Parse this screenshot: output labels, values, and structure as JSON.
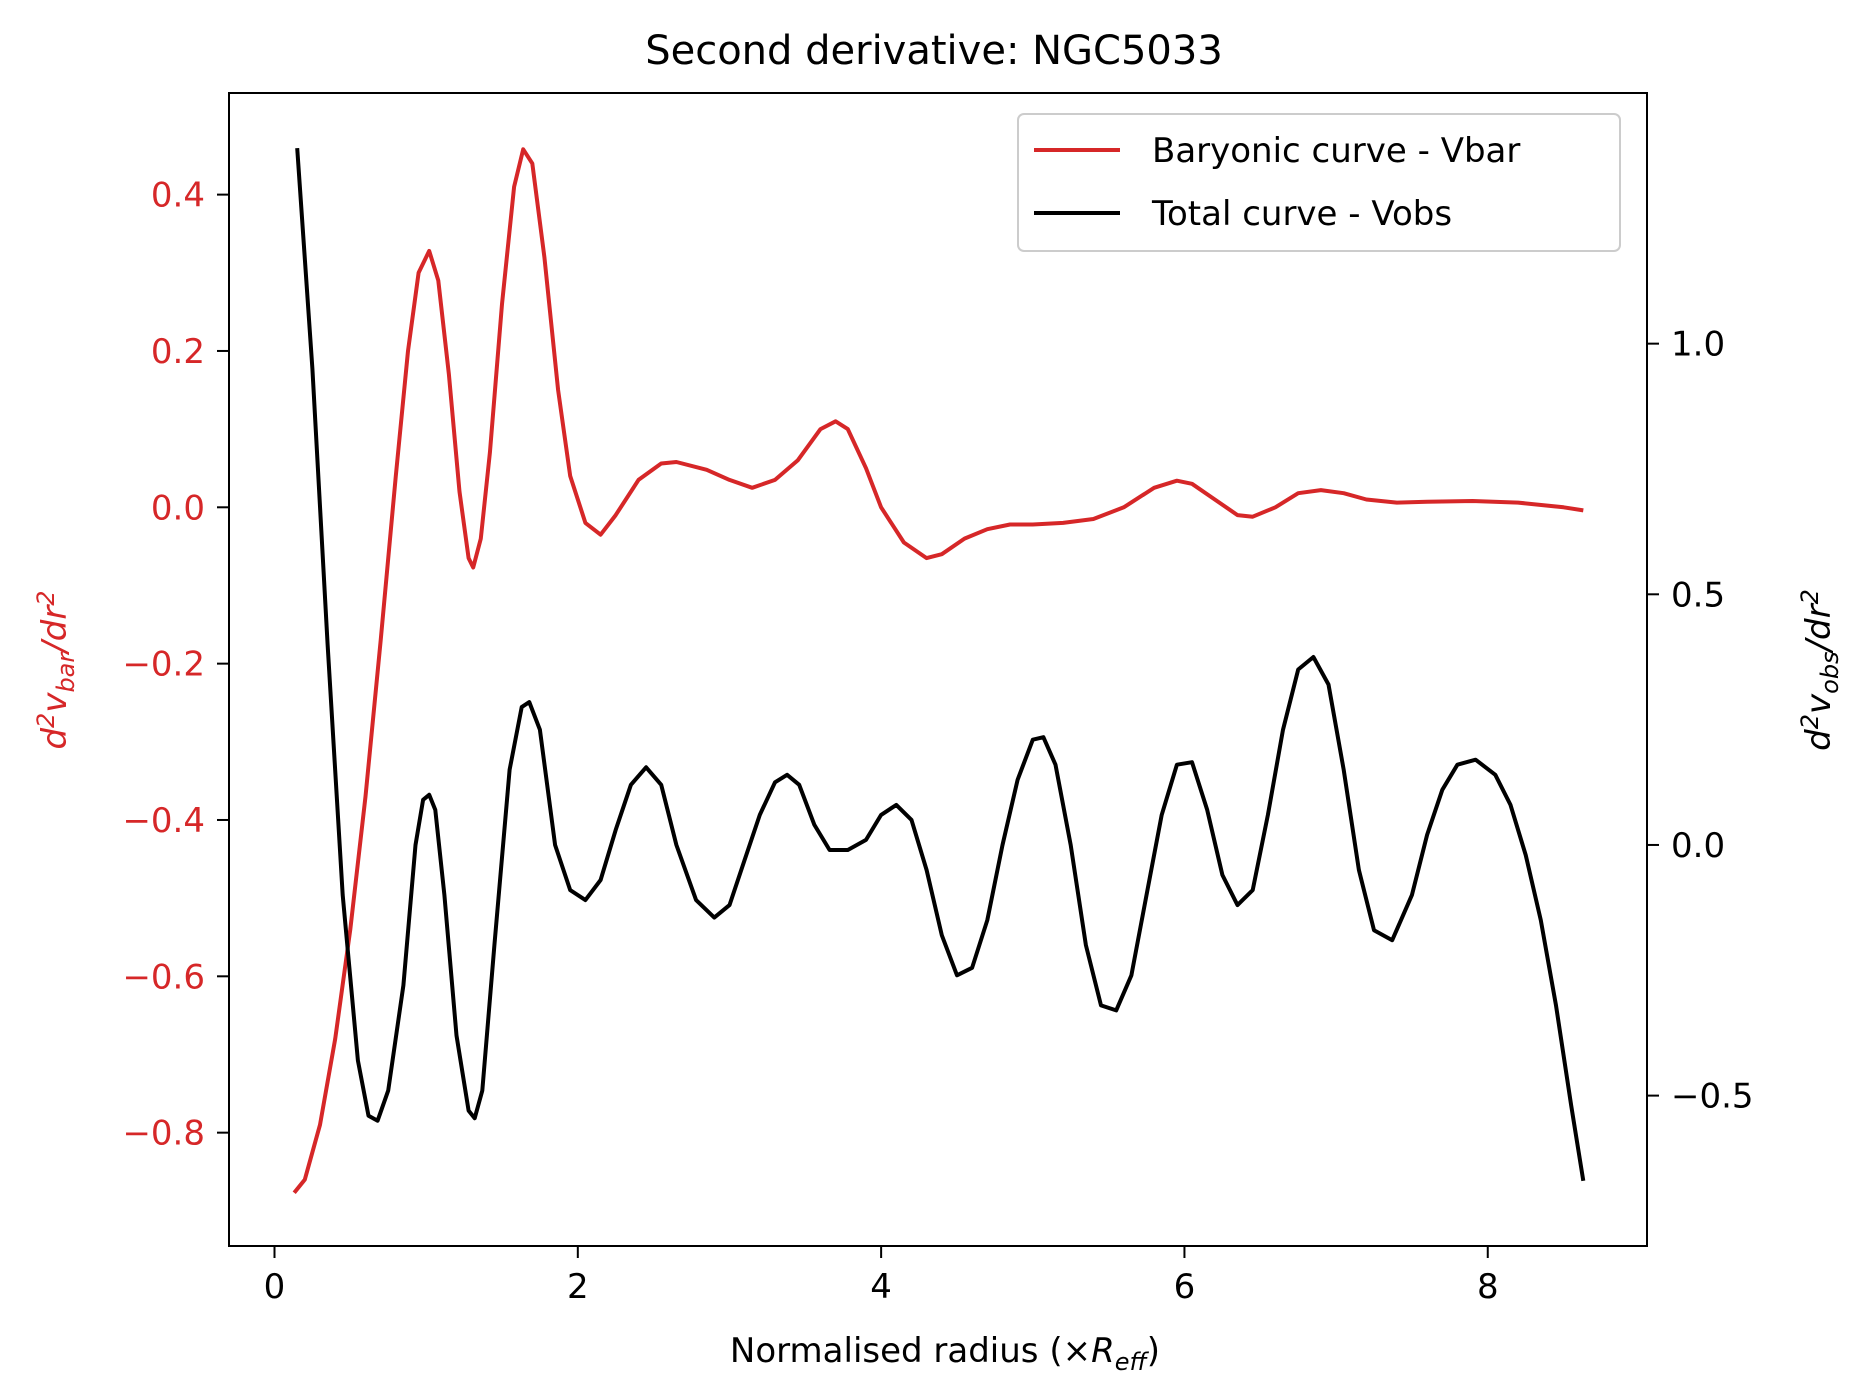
{
  "chart_data": {
    "type": "line",
    "title": "Second derivative: NGC5033",
    "xlabel": "Normalised radius (×R_eff)",
    "ylabel_left": "d²v_bar/dr²",
    "ylabel_right": "d²v_obs/dr²",
    "xlim": [
      -0.3,
      9.05
    ],
    "ylim_left": [
      -0.945,
      0.53
    ],
    "ylim_right": [
      -0.8,
      1.5
    ],
    "x_ticks": [
      0,
      2,
      4,
      6,
      8
    ],
    "y_ticks_left": [
      0.4,
      0.2,
      0.0,
      -0.2,
      -0.4,
      -0.6,
      -0.8
    ],
    "y_ticks_right": [
      1.0,
      0.5,
      0.0,
      -0.5
    ],
    "left_axis_color": "#d62728",
    "right_axis_color": "#000000",
    "grid": false,
    "legend_position": "upper right",
    "series": [
      {
        "name": "Baryonic curve - Vbar",
        "axis": "left",
        "color": "#d62728",
        "points": [
          [
            0.13,
            -0.877
          ],
          [
            0.2,
            -0.86
          ],
          [
            0.3,
            -0.79
          ],
          [
            0.4,
            -0.68
          ],
          [
            0.5,
            -0.54
          ],
          [
            0.6,
            -0.37
          ],
          [
            0.7,
            -0.17
          ],
          [
            0.8,
            0.04
          ],
          [
            0.88,
            0.2
          ],
          [
            0.95,
            0.3
          ],
          [
            1.02,
            0.328
          ],
          [
            1.08,
            0.29
          ],
          [
            1.15,
            0.17
          ],
          [
            1.22,
            0.02
          ],
          [
            1.28,
            -0.065
          ],
          [
            1.31,
            -0.077
          ],
          [
            1.36,
            -0.04
          ],
          [
            1.42,
            0.07
          ],
          [
            1.5,
            0.26
          ],
          [
            1.58,
            0.41
          ],
          [
            1.64,
            0.458
          ],
          [
            1.7,
            0.44
          ],
          [
            1.78,
            0.32
          ],
          [
            1.87,
            0.15
          ],
          [
            1.95,
            0.04
          ],
          [
            2.05,
            -0.02
          ],
          [
            2.15,
            -0.035
          ],
          [
            2.25,
            -0.01
          ],
          [
            2.4,
            0.035
          ],
          [
            2.55,
            0.056
          ],
          [
            2.65,
            0.058
          ],
          [
            2.85,
            0.048
          ],
          [
            3.0,
            0.035
          ],
          [
            3.15,
            0.025
          ],
          [
            3.3,
            0.035
          ],
          [
            3.45,
            0.06
          ],
          [
            3.6,
            0.1
          ],
          [
            3.7,
            0.11
          ],
          [
            3.78,
            0.1
          ],
          [
            3.9,
            0.05
          ],
          [
            4.0,
            0.0
          ],
          [
            4.15,
            -0.045
          ],
          [
            4.3,
            -0.065
          ],
          [
            4.4,
            -0.06
          ],
          [
            4.55,
            -0.04
          ],
          [
            4.7,
            -0.028
          ],
          [
            4.85,
            -0.022
          ],
          [
            5.0,
            -0.022
          ],
          [
            5.2,
            -0.02
          ],
          [
            5.4,
            -0.015
          ],
          [
            5.6,
            0.0
          ],
          [
            5.8,
            0.025
          ],
          [
            5.95,
            0.034
          ],
          [
            6.05,
            0.03
          ],
          [
            6.2,
            0.01
          ],
          [
            6.35,
            -0.01
          ],
          [
            6.45,
            -0.012
          ],
          [
            6.6,
            0.0
          ],
          [
            6.75,
            0.018
          ],
          [
            6.9,
            0.022
          ],
          [
            7.05,
            0.018
          ],
          [
            7.2,
            0.01
          ],
          [
            7.4,
            0.006
          ],
          [
            7.6,
            0.007
          ],
          [
            7.9,
            0.008
          ],
          [
            8.2,
            0.006
          ],
          [
            8.5,
            0.0
          ],
          [
            8.63,
            -0.004
          ]
        ]
      },
      {
        "name": "Total curve - Vobs",
        "axis": "right",
        "color": "#000000",
        "points": [
          [
            0.15,
            1.39
          ],
          [
            0.25,
            0.95
          ],
          [
            0.35,
            0.4
          ],
          [
            0.45,
            -0.1
          ],
          [
            0.55,
            -0.43
          ],
          [
            0.62,
            -0.54
          ],
          [
            0.68,
            -0.55
          ],
          [
            0.75,
            -0.49
          ],
          [
            0.85,
            -0.28
          ],
          [
            0.93,
            0.0
          ],
          [
            0.98,
            0.09
          ],
          [
            1.02,
            0.1
          ],
          [
            1.06,
            0.07
          ],
          [
            1.12,
            -0.1
          ],
          [
            1.2,
            -0.38
          ],
          [
            1.28,
            -0.53
          ],
          [
            1.32,
            -0.545
          ],
          [
            1.37,
            -0.49
          ],
          [
            1.45,
            -0.2
          ],
          [
            1.55,
            0.15
          ],
          [
            1.63,
            0.275
          ],
          [
            1.68,
            0.285
          ],
          [
            1.75,
            0.23
          ],
          [
            1.85,
            0.0
          ],
          [
            1.95,
            -0.09
          ],
          [
            2.05,
            -0.11
          ],
          [
            2.15,
            -0.07
          ],
          [
            2.25,
            0.03
          ],
          [
            2.35,
            0.12
          ],
          [
            2.45,
            0.155
          ],
          [
            2.55,
            0.12
          ],
          [
            2.65,
            0.0
          ],
          [
            2.78,
            -0.11
          ],
          [
            2.9,
            -0.145
          ],
          [
            3.0,
            -0.12
          ],
          [
            3.1,
            -0.03
          ],
          [
            3.2,
            0.06
          ],
          [
            3.3,
            0.125
          ],
          [
            3.38,
            0.14
          ],
          [
            3.46,
            0.12
          ],
          [
            3.56,
            0.04
          ],
          [
            3.66,
            -0.01
          ],
          [
            3.78,
            -0.01
          ],
          [
            3.9,
            0.01
          ],
          [
            4.0,
            0.06
          ],
          [
            4.1,
            0.08
          ],
          [
            4.2,
            0.05
          ],
          [
            4.3,
            -0.05
          ],
          [
            4.4,
            -0.18
          ],
          [
            4.5,
            -0.26
          ],
          [
            4.6,
            -0.245
          ],
          [
            4.7,
            -0.15
          ],
          [
            4.8,
            0.0
          ],
          [
            4.9,
            0.13
          ],
          [
            5.0,
            0.21
          ],
          [
            5.07,
            0.215
          ],
          [
            5.15,
            0.16
          ],
          [
            5.25,
            0.0
          ],
          [
            5.35,
            -0.2
          ],
          [
            5.45,
            -0.32
          ],
          [
            5.55,
            -0.33
          ],
          [
            5.65,
            -0.26
          ],
          [
            5.75,
            -0.1
          ],
          [
            5.85,
            0.06
          ],
          [
            5.95,
            0.16
          ],
          [
            6.05,
            0.165
          ],
          [
            6.15,
            0.07
          ],
          [
            6.25,
            -0.06
          ],
          [
            6.35,
            -0.12
          ],
          [
            6.45,
            -0.09
          ],
          [
            6.55,
            0.06
          ],
          [
            6.65,
            0.23
          ],
          [
            6.75,
            0.35
          ],
          [
            6.85,
            0.375
          ],
          [
            6.95,
            0.32
          ],
          [
            7.05,
            0.15
          ],
          [
            7.15,
            -0.05
          ],
          [
            7.25,
            -0.17
          ],
          [
            7.37,
            -0.19
          ],
          [
            7.5,
            -0.1
          ],
          [
            7.6,
            0.02
          ],
          [
            7.7,
            0.11
          ],
          [
            7.8,
            0.16
          ],
          [
            7.92,
            0.17
          ],
          [
            8.05,
            0.14
          ],
          [
            8.15,
            0.08
          ],
          [
            8.25,
            -0.02
          ],
          [
            8.35,
            -0.15
          ],
          [
            8.45,
            -0.32
          ],
          [
            8.55,
            -0.52
          ],
          [
            8.63,
            -0.67
          ]
        ]
      }
    ]
  }
}
